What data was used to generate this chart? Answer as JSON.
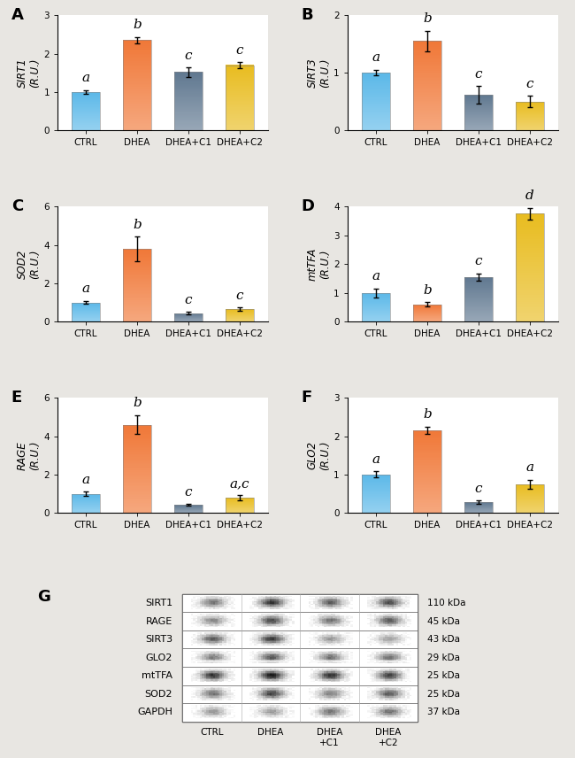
{
  "panels": {
    "A": {
      "ylabel": "SIRT1\n(R.U.)",
      "ylim": [
        0,
        3
      ],
      "yticks": [
        0,
        1,
        2,
        3
      ],
      "values": [
        1.0,
        2.35,
        1.52,
        1.7
      ],
      "errors": [
        0.05,
        0.08,
        0.12,
        0.08
      ],
      "letters": [
        "a",
        "b",
        "c",
        "c"
      ]
    },
    "B": {
      "ylabel": "SIRT3\n(R.U.)",
      "ylim": [
        0,
        2
      ],
      "yticks": [
        0,
        1,
        2
      ],
      "values": [
        1.0,
        1.55,
        0.62,
        0.5
      ],
      "errors": [
        0.05,
        0.18,
        0.15,
        0.1
      ],
      "letters": [
        "a",
        "b",
        "c",
        "c"
      ]
    },
    "C": {
      "ylabel": "SOD2\n(R.U.)",
      "ylim": [
        0,
        6
      ],
      "yticks": [
        0,
        2,
        4,
        6
      ],
      "values": [
        1.0,
        3.78,
        0.45,
        0.65
      ],
      "errors": [
        0.08,
        0.65,
        0.05,
        0.1
      ],
      "letters": [
        "a",
        "b",
        "c",
        "c"
      ]
    },
    "D": {
      "ylabel": "mtTFA\n(R.U.)",
      "ylim": [
        0,
        4
      ],
      "yticks": [
        0,
        1,
        2,
        3,
        4
      ],
      "values": [
        1.0,
        0.6,
        1.55,
        3.75
      ],
      "errors": [
        0.15,
        0.08,
        0.12,
        0.2
      ],
      "letters": [
        "a",
        "b",
        "c",
        "d"
      ]
    },
    "E": {
      "ylabel": "RAGE\n(R.U.)",
      "ylim": [
        0,
        6
      ],
      "yticks": [
        0,
        2,
        4,
        6
      ],
      "values": [
        1.0,
        4.6,
        0.42,
        0.8
      ],
      "errors": [
        0.12,
        0.5,
        0.05,
        0.12
      ],
      "letters": [
        "a",
        "b",
        "c",
        "a,c"
      ]
    },
    "F": {
      "ylabel": "GLO2\n(R.U.)",
      "ylim": [
        0,
        3
      ],
      "yticks": [
        0,
        1,
        2,
        3
      ],
      "values": [
        1.0,
        2.15,
        0.28,
        0.75
      ],
      "errors": [
        0.08,
        0.1,
        0.05,
        0.12
      ],
      "letters": [
        "a",
        "b",
        "c",
        "a"
      ]
    }
  },
  "categories": [
    "CTRL",
    "DHEA",
    "DHEA+C1",
    "DHEA+C2"
  ],
  "bar_colors": [
    "#5bb8e8",
    "#f07838",
    "#607890",
    "#e8bc20"
  ],
  "wb_labels": [
    "SIRT1",
    "RAGE",
    "SIRT3",
    "GLO2",
    "mtTFA",
    "SOD2",
    "GAPDH"
  ],
  "wb_kdas": [
    "110 kDa",
    "45 kDa",
    "43 kDa",
    "29 kDa",
    "25 kDa",
    "25 kDa",
    "37 kDa"
  ],
  "wb_xtick_labels": [
    "CTRL",
    "DHEA",
    "DHEA\n+C1",
    "DHEA\n+C2"
  ],
  "panel_label_fontsize": 13,
  "axis_label_fontsize": 8.5,
  "tick_fontsize": 7.5,
  "letter_fontsize": 11,
  "background_color": "#ffffff",
  "outer_bg": "#e8e6e2"
}
